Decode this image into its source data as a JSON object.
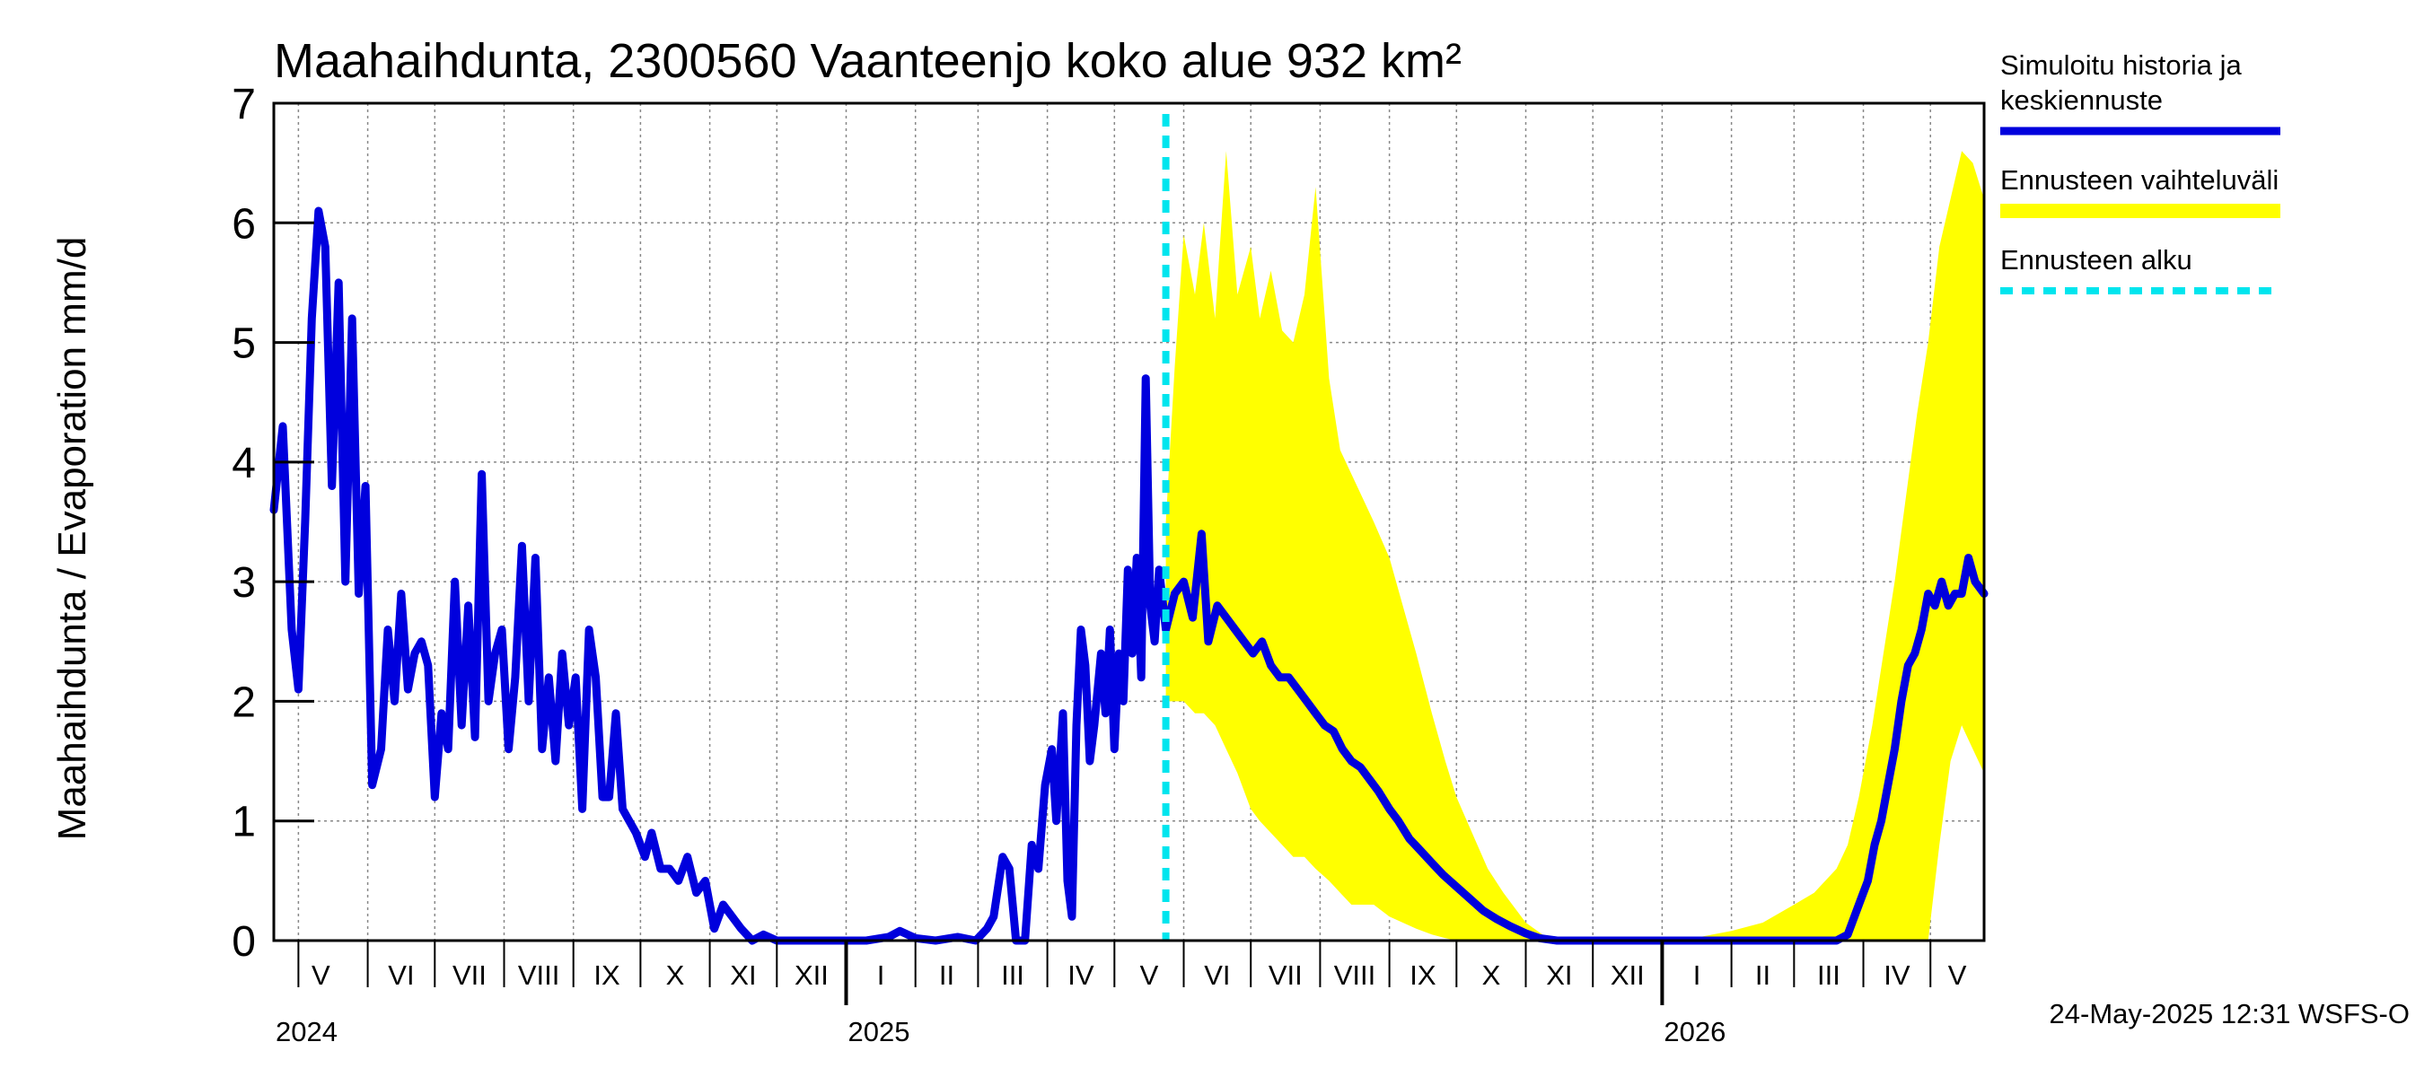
{
  "chart_data": {
    "type": "line",
    "title": "Maahaihdunta, 2300560 Vaanteenjo koko alue 932 km²",
    "ylabel": "Maahaihdunta / Evaporation   mm/d",
    "ylim": [
      0,
      7
    ],
    "yticks": [
      0,
      1,
      2,
      3,
      4,
      5,
      6,
      7
    ],
    "grid": true,
    "legend_position": "right",
    "x_range": [
      "2024-04-20",
      "2026-05-25"
    ],
    "month_labels": [
      "V",
      "VI",
      "VII",
      "VIII",
      "IX",
      "X",
      "XI",
      "XII",
      "I",
      "II",
      "III",
      "IV",
      "V",
      "VI",
      "VII",
      "VIII",
      "IX",
      "X",
      "XI",
      "XII",
      "I",
      "II",
      "III",
      "IV",
      "V"
    ],
    "year_labels": [
      "2024",
      "2025",
      "2026"
    ],
    "forecast_start": "2025-05-24",
    "footer": "24-May-2025 12:31 WSFS-O",
    "colors": {
      "history": "#0000dd",
      "range": "#ffff00",
      "forecast_start": "#00e5ee",
      "grid": "#888888"
    },
    "legend": [
      {
        "label_lines": [
          "Simuloitu historia ja",
          "keskiennuste"
        ],
        "style": "history"
      },
      {
        "label_lines": [
          "Ennusteen vaihteluväli"
        ],
        "style": "range"
      },
      {
        "label_lines": [
          "Ennusteen alku"
        ],
        "style": "forecast_start"
      }
    ],
    "series": [
      {
        "name": "Simuloitu historia ja keskiennuste",
        "points": [
          [
            "2024-04-20",
            3.6
          ],
          [
            "2024-04-24",
            4.3
          ],
          [
            "2024-04-28",
            2.6
          ],
          [
            "2024-05-01",
            2.1
          ],
          [
            "2024-05-04",
            3.5
          ],
          [
            "2024-05-07",
            5.2
          ],
          [
            "2024-05-10",
            6.1
          ],
          [
            "2024-05-13",
            5.8
          ],
          [
            "2024-05-16",
            3.8
          ],
          [
            "2024-05-19",
            5.5
          ],
          [
            "2024-05-22",
            3.0
          ],
          [
            "2024-05-25",
            5.2
          ],
          [
            "2024-05-28",
            2.9
          ],
          [
            "2024-05-31",
            3.8
          ],
          [
            "2024-06-03",
            1.3
          ],
          [
            "2024-06-07",
            1.6
          ],
          [
            "2024-06-10",
            2.6
          ],
          [
            "2024-06-13",
            2.0
          ],
          [
            "2024-06-16",
            2.9
          ],
          [
            "2024-06-19",
            2.1
          ],
          [
            "2024-06-22",
            2.4
          ],
          [
            "2024-06-25",
            2.5
          ],
          [
            "2024-06-28",
            2.3
          ],
          [
            "2024-07-01",
            1.2
          ],
          [
            "2024-07-04",
            1.9
          ],
          [
            "2024-07-07",
            1.6
          ],
          [
            "2024-07-10",
            3.0
          ],
          [
            "2024-07-13",
            1.8
          ],
          [
            "2024-07-16",
            2.8
          ],
          [
            "2024-07-19",
            1.7
          ],
          [
            "2024-07-22",
            3.9
          ],
          [
            "2024-07-25",
            2.0
          ],
          [
            "2024-07-28",
            2.4
          ],
          [
            "2024-07-31",
            2.6
          ],
          [
            "2024-08-03",
            1.6
          ],
          [
            "2024-08-06",
            2.2
          ],
          [
            "2024-08-09",
            3.3
          ],
          [
            "2024-08-12",
            2.0
          ],
          [
            "2024-08-15",
            3.2
          ],
          [
            "2024-08-18",
            1.6
          ],
          [
            "2024-08-21",
            2.2
          ],
          [
            "2024-08-24",
            1.5
          ],
          [
            "2024-08-27",
            2.4
          ],
          [
            "2024-08-30",
            1.8
          ],
          [
            "2024-09-02",
            2.2
          ],
          [
            "2024-09-05",
            1.1
          ],
          [
            "2024-09-08",
            2.6
          ],
          [
            "2024-09-11",
            2.2
          ],
          [
            "2024-09-14",
            1.2
          ],
          [
            "2024-09-17",
            1.2
          ],
          [
            "2024-09-20",
            1.9
          ],
          [
            "2024-09-23",
            1.1
          ],
          [
            "2024-09-26",
            1.0
          ],
          [
            "2024-09-29",
            0.9
          ],
          [
            "2024-10-03",
            0.7
          ],
          [
            "2024-10-06",
            0.9
          ],
          [
            "2024-10-10",
            0.6
          ],
          [
            "2024-10-14",
            0.6
          ],
          [
            "2024-10-18",
            0.5
          ],
          [
            "2024-10-22",
            0.7
          ],
          [
            "2024-10-26",
            0.4
          ],
          [
            "2024-10-30",
            0.5
          ],
          [
            "2024-11-03",
            0.1
          ],
          [
            "2024-11-07",
            0.3
          ],
          [
            "2024-11-11",
            0.2
          ],
          [
            "2024-11-15",
            0.1
          ],
          [
            "2024-11-20",
            0.0
          ],
          [
            "2024-11-25",
            0.05
          ],
          [
            "2024-12-01",
            0.0
          ],
          [
            "2024-12-15",
            0.0
          ],
          [
            "2025-01-01",
            0.0
          ],
          [
            "2025-01-10",
            0.0
          ],
          [
            "2025-01-20",
            0.03
          ],
          [
            "2025-01-25",
            0.08
          ],
          [
            "2025-02-01",
            0.02
          ],
          [
            "2025-02-10",
            0.0
          ],
          [
            "2025-02-20",
            0.03
          ],
          [
            "2025-02-28",
            0.0
          ],
          [
            "2025-03-05",
            0.1
          ],
          [
            "2025-03-08",
            0.2
          ],
          [
            "2025-03-12",
            0.7
          ],
          [
            "2025-03-15",
            0.6
          ],
          [
            "2025-03-18",
            0.0
          ],
          [
            "2025-03-22",
            0.0
          ],
          [
            "2025-03-25",
            0.8
          ],
          [
            "2025-03-28",
            0.6
          ],
          [
            "2025-03-31",
            1.3
          ],
          [
            "2025-04-03",
            1.6
          ],
          [
            "2025-04-05",
            1.0
          ],
          [
            "2025-04-08",
            1.9
          ],
          [
            "2025-04-10",
            0.5
          ],
          [
            "2025-04-12",
            0.2
          ],
          [
            "2025-04-14",
            1.8
          ],
          [
            "2025-04-16",
            2.6
          ],
          [
            "2025-04-18",
            2.3
          ],
          [
            "2025-04-20",
            1.5
          ],
          [
            "2025-04-22",
            1.8
          ],
          [
            "2025-04-25",
            2.4
          ],
          [
            "2025-04-27",
            1.9
          ],
          [
            "2025-04-29",
            2.6
          ],
          [
            "2025-05-01",
            1.6
          ],
          [
            "2025-05-03",
            2.4
          ],
          [
            "2025-05-05",
            2.0
          ],
          [
            "2025-05-07",
            3.1
          ],
          [
            "2025-05-09",
            2.4
          ],
          [
            "2025-05-11",
            3.2
          ],
          [
            "2025-05-13",
            2.2
          ],
          [
            "2025-05-15",
            4.7
          ],
          [
            "2025-05-17",
            2.8
          ],
          [
            "2025-05-19",
            2.5
          ],
          [
            "2025-05-21",
            3.1
          ],
          [
            "2025-05-24",
            2.6
          ],
          [
            "2025-05-28",
            2.9
          ],
          [
            "2025-06-01",
            3.0
          ],
          [
            "2025-06-05",
            2.7
          ],
          [
            "2025-06-09",
            3.4
          ],
          [
            "2025-06-12",
            2.5
          ],
          [
            "2025-06-16",
            2.8
          ],
          [
            "2025-06-20",
            2.7
          ],
          [
            "2025-06-24",
            2.6
          ],
          [
            "2025-06-28",
            2.5
          ],
          [
            "2025-07-02",
            2.4
          ],
          [
            "2025-07-06",
            2.5
          ],
          [
            "2025-07-10",
            2.3
          ],
          [
            "2025-07-14",
            2.2
          ],
          [
            "2025-07-18",
            2.2
          ],
          [
            "2025-07-22",
            2.1
          ],
          [
            "2025-07-26",
            2.0
          ],
          [
            "2025-07-30",
            1.9
          ],
          [
            "2025-08-03",
            1.8
          ],
          [
            "2025-08-07",
            1.75
          ],
          [
            "2025-08-11",
            1.6
          ],
          [
            "2025-08-15",
            1.5
          ],
          [
            "2025-08-19",
            1.45
          ],
          [
            "2025-08-23",
            1.35
          ],
          [
            "2025-08-27",
            1.25
          ],
          [
            "2025-09-01",
            1.1
          ],
          [
            "2025-09-05",
            1.0
          ],
          [
            "2025-09-10",
            0.85
          ],
          [
            "2025-09-15",
            0.75
          ],
          [
            "2025-09-20",
            0.65
          ],
          [
            "2025-09-25",
            0.55
          ],
          [
            "2025-10-01",
            0.45
          ],
          [
            "2025-10-07",
            0.35
          ],
          [
            "2025-10-13",
            0.25
          ],
          [
            "2025-10-19",
            0.18
          ],
          [
            "2025-10-25",
            0.12
          ],
          [
            "2025-11-01",
            0.06
          ],
          [
            "2025-11-07",
            0.02
          ],
          [
            "2025-11-15",
            0.0
          ],
          [
            "2025-12-15",
            0.0
          ],
          [
            "2026-01-15",
            0.0
          ],
          [
            "2026-02-15",
            0.0
          ],
          [
            "2026-03-10",
            0.0
          ],
          [
            "2026-03-20",
            0.0
          ],
          [
            "2026-03-25",
            0.05
          ],
          [
            "2026-03-30",
            0.3
          ],
          [
            "2026-04-03",
            0.5
          ],
          [
            "2026-04-06",
            0.8
          ],
          [
            "2026-04-09",
            1.0
          ],
          [
            "2026-04-12",
            1.3
          ],
          [
            "2026-04-15",
            1.6
          ],
          [
            "2026-04-18",
            2.0
          ],
          [
            "2026-04-21",
            2.3
          ],
          [
            "2026-04-24",
            2.4
          ],
          [
            "2026-04-27",
            2.6
          ],
          [
            "2026-04-30",
            2.9
          ],
          [
            "2026-05-03",
            2.8
          ],
          [
            "2026-05-06",
            3.0
          ],
          [
            "2026-05-09",
            2.8
          ],
          [
            "2026-05-12",
            2.9
          ],
          [
            "2026-05-15",
            2.9
          ],
          [
            "2026-05-18",
            3.2
          ],
          [
            "2026-05-21",
            3.0
          ],
          [
            "2026-05-25",
            2.9
          ]
        ]
      },
      {
        "name": "Ennusteen vaihteluväli",
        "range": [
          [
            "2025-05-24",
            2.0,
            3.5
          ],
          [
            "2025-05-28",
            2.0,
            4.8
          ],
          [
            "2025-06-01",
            2.0,
            5.9
          ],
          [
            "2025-06-06",
            1.9,
            5.4
          ],
          [
            "2025-06-10",
            1.9,
            6.0
          ],
          [
            "2025-06-15",
            1.8,
            5.2
          ],
          [
            "2025-06-20",
            1.6,
            6.6
          ],
          [
            "2025-06-25",
            1.4,
            5.4
          ],
          [
            "2025-07-01",
            1.1,
            5.8
          ],
          [
            "2025-07-05",
            1.0,
            5.2
          ],
          [
            "2025-07-10",
            0.9,
            5.6
          ],
          [
            "2025-07-15",
            0.8,
            5.1
          ],
          [
            "2025-07-20",
            0.7,
            5.0
          ],
          [
            "2025-07-25",
            0.7,
            5.4
          ],
          [
            "2025-07-30",
            0.6,
            6.3
          ],
          [
            "2025-08-05",
            0.5,
            4.7
          ],
          [
            "2025-08-10",
            0.4,
            4.1
          ],
          [
            "2025-08-15",
            0.3,
            3.9
          ],
          [
            "2025-08-20",
            0.3,
            3.7
          ],
          [
            "2025-08-25",
            0.3,
            3.5
          ],
          [
            "2025-09-01",
            0.2,
            3.2
          ],
          [
            "2025-09-07",
            0.15,
            2.8
          ],
          [
            "2025-09-13",
            0.1,
            2.4
          ],
          [
            "2025-09-20",
            0.05,
            1.9
          ],
          [
            "2025-09-26",
            0.02,
            1.5
          ],
          [
            "2025-10-01",
            0.0,
            1.2
          ],
          [
            "2025-10-08",
            0.0,
            0.9
          ],
          [
            "2025-10-15",
            0.0,
            0.6
          ],
          [
            "2025-10-22",
            0.0,
            0.4
          ],
          [
            "2025-11-01",
            0.0,
            0.15
          ],
          [
            "2025-11-10",
            0.0,
            0.03
          ],
          [
            "2025-11-20",
            0.0,
            0.0
          ],
          [
            "2025-12-15",
            0.0,
            0.0
          ],
          [
            "2026-01-15",
            0.0,
            0.02
          ],
          [
            "2026-02-01",
            0.0,
            0.08
          ],
          [
            "2026-02-15",
            0.0,
            0.15
          ],
          [
            "2026-03-01",
            0.0,
            0.3
          ],
          [
            "2026-03-10",
            0.0,
            0.4
          ],
          [
            "2026-03-20",
            0.0,
            0.6
          ],
          [
            "2026-03-25",
            0.0,
            0.8
          ],
          [
            "2026-03-30",
            0.0,
            1.2
          ],
          [
            "2026-04-05",
            0.0,
            1.8
          ],
          [
            "2026-04-10",
            0.0,
            2.4
          ],
          [
            "2026-04-15",
            0.0,
            3.0
          ],
          [
            "2026-04-20",
            0.0,
            3.7
          ],
          [
            "2026-04-25",
            0.0,
            4.4
          ],
          [
            "2026-04-30",
            0.0,
            5.0
          ],
          [
            "2026-05-05",
            0.8,
            5.8
          ],
          [
            "2026-05-10",
            1.5,
            6.2
          ],
          [
            "2026-05-15",
            1.8,
            6.6
          ],
          [
            "2026-05-20",
            1.6,
            6.5
          ],
          [
            "2026-05-25",
            1.4,
            6.2
          ]
        ]
      }
    ]
  }
}
